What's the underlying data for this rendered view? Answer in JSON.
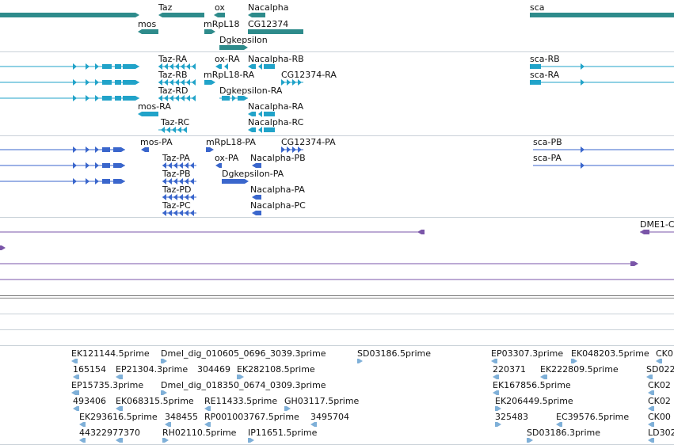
{
  "colors": {
    "gene": "#2e8b8b",
    "transcript": "#21a3c9",
    "protein": "#3a66cc",
    "alignment": "#7a55a8",
    "est": "#7fb0d8",
    "separator": "#c9d1d8"
  },
  "tracks": {
    "genes": {
      "labels": [
        "Taz",
        "ox",
        "Nacalpha",
        "sca",
        "mos",
        "mRpL18",
        "CG12374",
        "Dgkepsilon"
      ]
    },
    "transcripts": {
      "labels": [
        "Taz-RA",
        "ox-RA",
        "Nacalpha-RB",
        "sca-RB",
        "Taz-RB",
        "mRpL18-RA",
        "CG12374-RA",
        "sca-RA",
        "Taz-RD",
        "Dgkepsilon-RA",
        "mos-RA",
        "Nacalpha-RA",
        "Taz-RC",
        "Nacalpha-RC"
      ]
    },
    "proteins": {
      "labels": [
        "mos-PA",
        "mRpL18-PA",
        "CG12374-PA",
        "sca-PB",
        "Taz-PA",
        "ox-PA",
        "Nacalpha-PB",
        "sca-PA",
        "Taz-PB",
        "Dgkepsilon-PA",
        "Taz-PD",
        "Nacalpha-PA",
        "Taz-PC",
        "Nacalpha-PC"
      ]
    },
    "alignments": {
      "labels": [
        "DME1-C"
      ]
    },
    "ests": {
      "labels": [
        "EK121144.5prime",
        "Dmel_dig_010605_0696_3039.3prime",
        "SD03186.5prime",
        "EP03307.3prime",
        "EK048203.5prime",
        "CK0",
        "165154",
        "EP21304.3prime",
        "304469",
        "EK282108.5prime",
        "220371",
        "EK222809.5prime",
        "SD022",
        "EP15735.3prime",
        "Dmel_dig_018350_0674_0309.3prime",
        "EK167856.5prime",
        "CK02",
        "493406",
        "EK068315.5prime",
        "RE11433.5prime",
        "GH03117.5prime",
        "EK206449.5prime",
        "CK02",
        "EK293616.5prime",
        "348455",
        "RP001003767.5prime",
        "3495704",
        "325483",
        "EC39576.5prime",
        "CK00",
        "44322977370",
        "RH02110.5prime",
        "IP11651.5prime",
        "SD03186.3prime",
        "LD302"
      ]
    }
  }
}
